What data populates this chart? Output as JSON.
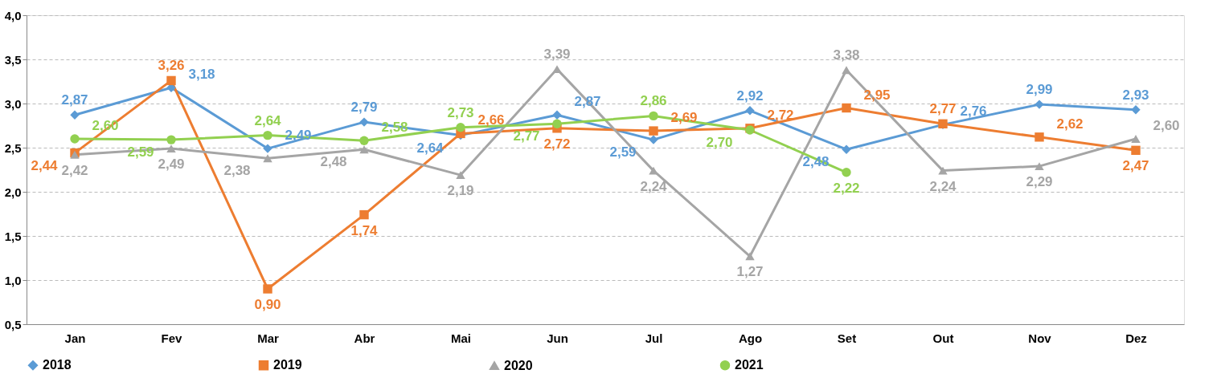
{
  "chart_data": {
    "type": "line",
    "categories": [
      "Jan",
      "Fev",
      "Mar",
      "Abr",
      "Mai",
      "Jun",
      "Jul",
      "Ago",
      "Set",
      "Out",
      "Nov",
      "Dez"
    ],
    "series": [
      {
        "name": "2018",
        "color": "#5b9bd5",
        "marker": "diamond",
        "values": [
          2.87,
          3.18,
          2.49,
          2.79,
          2.64,
          2.87,
          2.59,
          2.92,
          2.48,
          2.76,
          2.99,
          2.93
        ],
        "value_labels": [
          "2,87",
          "3,18",
          "2,49",
          "2,79",
          "2,64",
          "2,87",
          "2,59",
          "2,92",
          "2,48",
          "2,76",
          "2,99",
          "2,93"
        ]
      },
      {
        "name": "2019",
        "color": "#ed7d31",
        "marker": "square",
        "values": [
          2.44,
          3.26,
          0.9,
          1.74,
          2.66,
          2.72,
          2.69,
          2.72,
          2.95,
          2.77,
          2.62,
          2.47
        ],
        "value_labels": [
          "2,44",
          "3,26",
          "0,90",
          "1,74",
          "2,66",
          "2,72",
          "2,69",
          "2,72",
          "2,95",
          "2,77",
          "2,62",
          "2,47"
        ]
      },
      {
        "name": "2020",
        "color": "#a5a5a5",
        "marker": "triangle",
        "values": [
          2.42,
          2.49,
          2.38,
          2.48,
          2.19,
          3.39,
          2.24,
          1.27,
          3.38,
          2.24,
          2.29,
          2.6
        ],
        "value_labels": [
          "2,42",
          "2,49",
          "2,38",
          "2,48",
          "2,19",
          "3,39",
          "2,24",
          "1,27",
          "3,38",
          "2,24",
          "2,29",
          "2,60"
        ]
      },
      {
        "name": "2021",
        "color": "#92d050",
        "marker": "circle",
        "values": [
          2.6,
          2.59,
          2.64,
          2.58,
          2.73,
          2.77,
          2.86,
          2.7,
          2.22,
          null,
          null,
          null
        ],
        "value_labels": [
          "2,60",
          "2,59",
          "2,64",
          "2,58",
          "2,73",
          "2,77",
          "2,86",
          "2,70",
          "2,22",
          null,
          null,
          null
        ]
      }
    ],
    "ylim": [
      0.5,
      4.0
    ],
    "yticks": [
      {
        "value": 0.5,
        "label": "0,5"
      },
      {
        "value": 1.0,
        "label": "1,0"
      },
      {
        "value": 1.5,
        "label": "1,5"
      },
      {
        "value": 2.0,
        "label": "2,0"
      },
      {
        "value": 2.5,
        "label": "2,5"
      },
      {
        "value": 3.0,
        "label": "3,0"
      },
      {
        "value": 3.5,
        "label": "3,5"
      },
      {
        "value": 4.0,
        "label": "4,0"
      }
    ],
    "grid": "y",
    "legend": "bottom",
    "line_style": "solid"
  }
}
